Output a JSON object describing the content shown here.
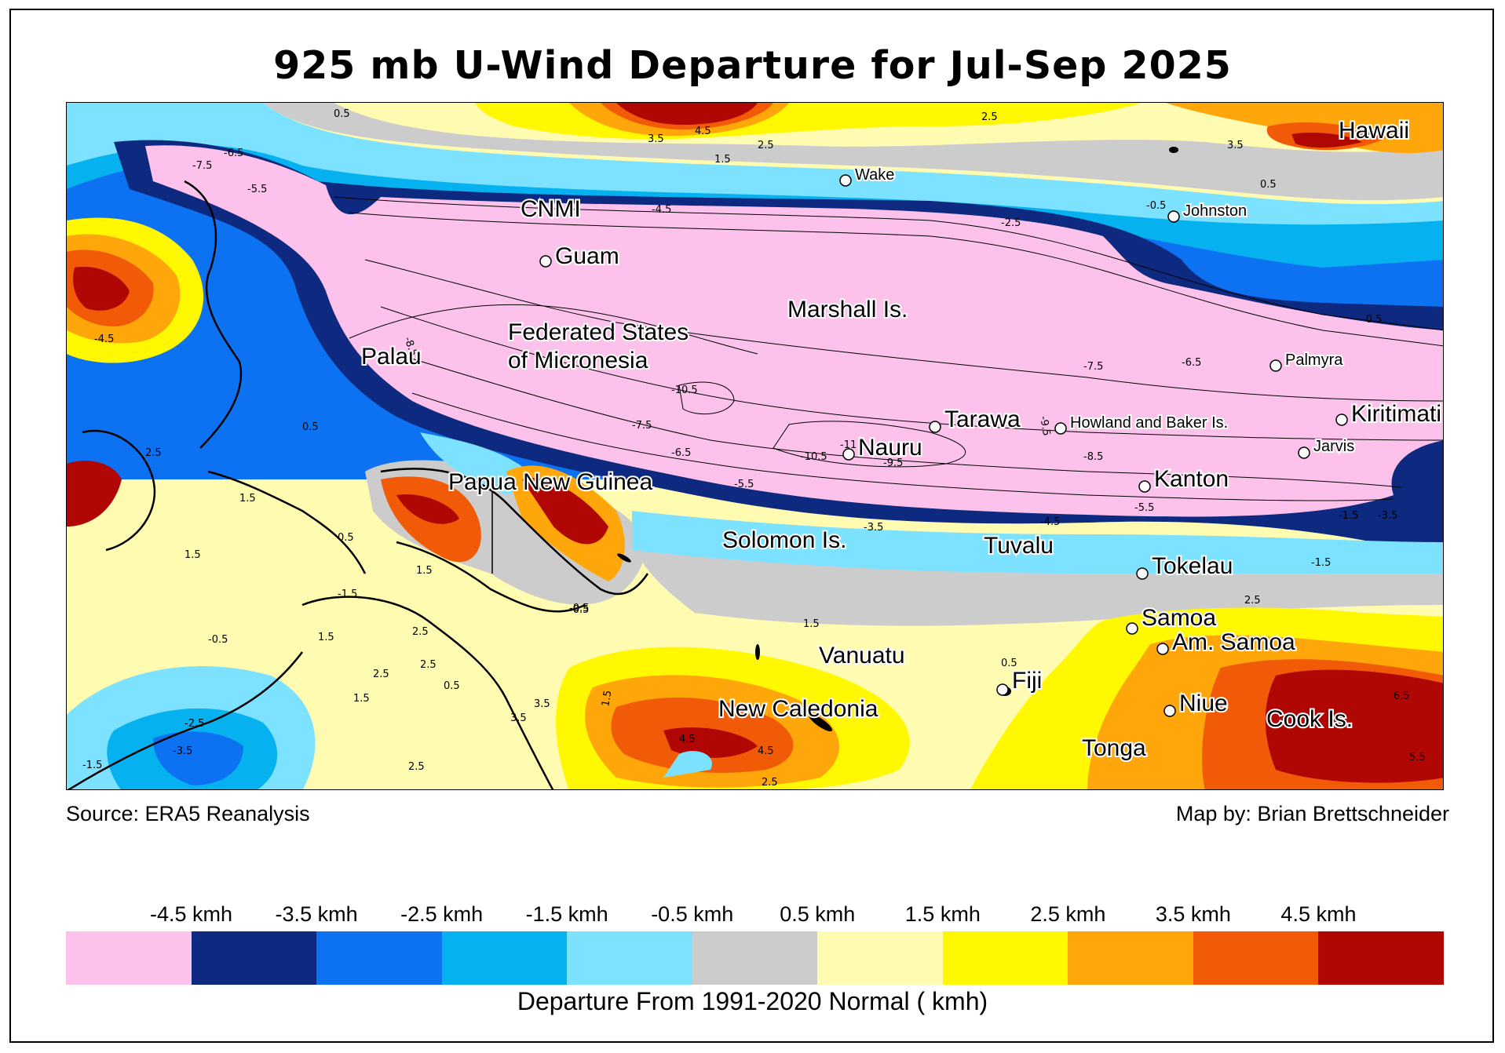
{
  "title": "925 mb U-Wind Departure for Jul-Sep 2025",
  "source": "Source: ERA5 Reanalysis",
  "credit": "Map by: Brian Brettschneider",
  "legend": {
    "title": "Departure From 1991-2020 Normal ( kmh)",
    "colors": [
      "#fcc2ec",
      "#0e2a80",
      "#0d72f2",
      "#06b1ef",
      "#7de2ff",
      "#cccccc",
      "#fffbb0",
      "#fff800",
      "#ffa70a",
      "#f15a07",
      "#b00604"
    ],
    "ticks": [
      "-4.5 kmh",
      "-3.5 kmh",
      "-2.5 kmh",
      "-1.5 kmh",
      "-0.5 kmh",
      "0.5 kmh",
      "1.5 kmh",
      "2.5 kmh",
      "3.5 kmh",
      "4.5 kmh"
    ]
  },
  "places": [
    {
      "name": "Hawaii",
      "size": "large",
      "marker": false
    },
    {
      "name": "Wake",
      "size": "small",
      "marker": true
    },
    {
      "name": "Johnston",
      "size": "small",
      "marker": true
    },
    {
      "name": "CNMI",
      "size": "large",
      "marker": false
    },
    {
      "name": "Guam",
      "size": "large",
      "marker": true
    },
    {
      "name": "Marshall Is.",
      "size": "large",
      "marker": false
    },
    {
      "name": "Federated States",
      "size": "large",
      "marker": false
    },
    {
      "name": "of Micronesia",
      "size": "large",
      "marker": false
    },
    {
      "name": "Palau",
      "size": "large",
      "marker": false
    },
    {
      "name": "Palmyra",
      "size": "small",
      "marker": true
    },
    {
      "name": "Tarawa",
      "size": "large",
      "marker": true
    },
    {
      "name": "Howland and Baker Is.",
      "size": "small",
      "marker": true
    },
    {
      "name": "Kiritimati",
      "size": "large",
      "marker": true
    },
    {
      "name": "Jarvis",
      "size": "small",
      "marker": true
    },
    {
      "name": "Nauru",
      "size": "large",
      "marker": true
    },
    {
      "name": "Kanton",
      "size": "large",
      "marker": true
    },
    {
      "name": "Papua New Guinea",
      "size": "large",
      "marker": false
    },
    {
      "name": "Solomon Is.",
      "size": "large",
      "marker": false
    },
    {
      "name": "Tuvalu",
      "size": "large",
      "marker": false
    },
    {
      "name": "Tokelau",
      "size": "large",
      "marker": true
    },
    {
      "name": "Samoa",
      "size": "large",
      "marker": true
    },
    {
      "name": "Am. Samoa",
      "size": "large",
      "marker": true
    },
    {
      "name": "Vanuatu",
      "size": "large",
      "marker": false
    },
    {
      "name": "Fiji",
      "size": "large",
      "marker": true
    },
    {
      "name": "Niue",
      "size": "large",
      "marker": true
    },
    {
      "name": "New Caledonia",
      "size": "large",
      "marker": false
    },
    {
      "name": "Cook Is.",
      "size": "large",
      "marker": false
    },
    {
      "name": "Tonga",
      "size": "large",
      "marker": false
    }
  ],
  "contour_labels": [
    "0.5",
    "2.5",
    "3.5",
    "4.5",
    "1.5",
    "2.5",
    "3.5",
    "-7.5",
    "-6.5",
    "-5.5",
    "-4.5",
    "-0.5",
    "-2.5",
    "0.5",
    "-0.5",
    "-8.5",
    "-10.5",
    "-7.5",
    "-6.5",
    "-5.5",
    "-11",
    "-10.5",
    "-9.5",
    "-8.5",
    "-9.5",
    "-7.5",
    "-6.5",
    "-5.5",
    "-3.5",
    "-4.5",
    "-3.5",
    "-1.5",
    "-1.5",
    "2.5",
    "6.5",
    "5.5",
    "4.5",
    "4.5",
    "2.5",
    "-1.5",
    "-4.5",
    "-2.5",
    "-3.5",
    "-1.5",
    "0.5",
    "1.5",
    "-0.5",
    "3.5",
    "1.5",
    "0.5",
    "2.5",
    "1.5",
    "0.5",
    "2.5",
    "1.5",
    "2.5",
    "-0.5",
    "1.5",
    "2.5",
    "2.5",
    "3.5",
    "1.5",
    "1.5",
    "0.5",
    "-0.5"
  ]
}
